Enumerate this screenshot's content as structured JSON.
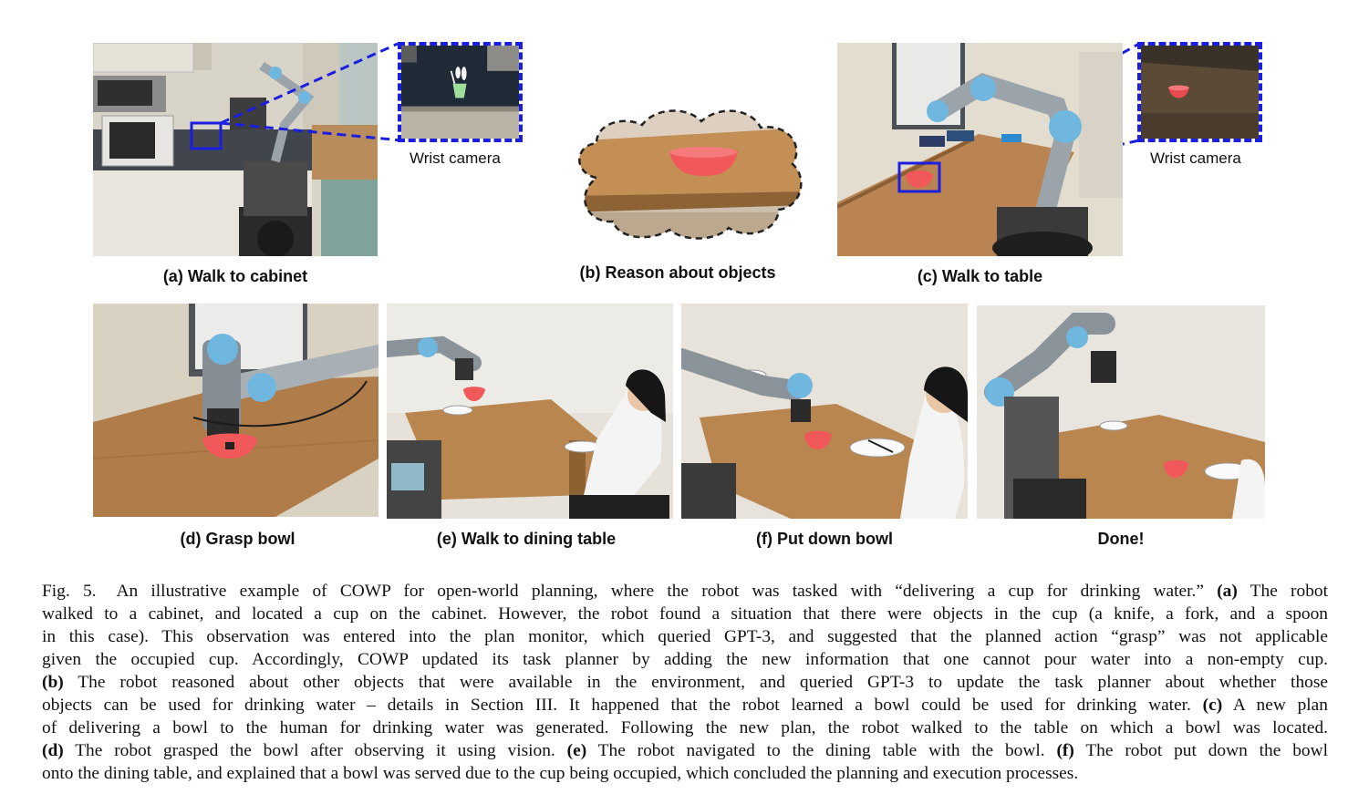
{
  "figure": {
    "panels": [
      {
        "id": "a",
        "caption": "(a) Walk to cabinet"
      },
      {
        "id": "b",
        "caption": "(b) Reason about objects"
      },
      {
        "id": "c",
        "caption": "(c) Walk to table"
      },
      {
        "id": "d",
        "caption": "(d) Grasp bowl"
      },
      {
        "id": "e",
        "caption": "(e) Walk to dining table"
      },
      {
        "id": "f",
        "caption": "(f) Put down bowl"
      },
      {
        "id": "g",
        "caption": "Done!"
      }
    ],
    "inset_label_a": "Wrist camera",
    "inset_label_c": "Wrist camera",
    "label_colors": {
      "highlight_box": "#1a1ee0",
      "bowl": "#f0585a"
    }
  },
  "caption": {
    "fig_label": "Fig. 5.",
    "lines": [
      {
        "segments": [
          {
            "t": "An illustrative example of COWP for open-world planning, where the robot was tasked with “delivering a cup for drinking water.” "
          },
          {
            "t": "(a)",
            "b": true
          },
          {
            "t": " The robot"
          }
        ]
      },
      {
        "segments": [
          {
            "t": "walked to a cabinet, and located a cup on the cabinet. However, the robot found a situation that there were objects in the cup (a knife, a fork, and a spoon"
          }
        ]
      },
      {
        "segments": [
          {
            "t": "in this case). This observation was entered into the plan monitor, which queried GPT-3, and suggested that the planned action “grasp” was not applicable"
          }
        ]
      },
      {
        "segments": [
          {
            "t": "given the occupied cup. Accordingly, COWP updated its task planner by adding the new information that one cannot pour water into a non-empty cup."
          }
        ]
      },
      {
        "segments": [
          {
            "t": "(b)",
            "b": true
          },
          {
            "t": " The robot reasoned about other objects that were available in the environment, and queried GPT-3 to update the task planner about whether those"
          }
        ]
      },
      {
        "segments": [
          {
            "t": "objects can be used for drinking water – details in Section III. It happened that the robot learned a bowl could be used for drinking water. "
          },
          {
            "t": "(c)",
            "b": true
          },
          {
            "t": " A new plan"
          }
        ]
      },
      {
        "segments": [
          {
            "t": "of delivering a bowl to the human for drinking water was generated. Following the new plan, the robot walked to the table on which a bowl was located."
          }
        ]
      },
      {
        "segments": [
          {
            "t": "(d)",
            "b": true
          },
          {
            "t": " The robot grasped the bowl after observing it using vision. "
          },
          {
            "t": "(e)",
            "b": true
          },
          {
            "t": " The robot navigated to the dining table with the bowl. "
          },
          {
            "t": "(f)",
            "b": true
          },
          {
            "t": " The robot put down the bowl"
          }
        ]
      },
      {
        "segments": [
          {
            "t": "onto the dining table, and explained that a bowl was served due to the cup being occupied, which concluded the planning and execution processes."
          }
        ]
      }
    ]
  }
}
